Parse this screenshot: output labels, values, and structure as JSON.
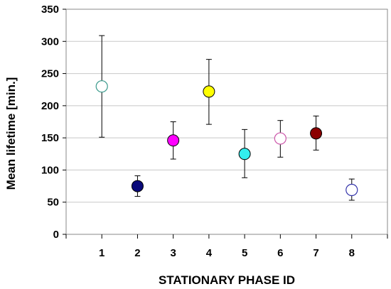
{
  "chart_data": {
    "type": "scatter",
    "xlabel": "STATIONARY PHASE ID",
    "ylabel": "Mean lifetime [min.]",
    "xlim": [
      0,
      9
    ],
    "ylim": [
      0,
      350
    ],
    "x_ticks": [
      1,
      2,
      3,
      4,
      5,
      6,
      7,
      8
    ],
    "y_ticks": [
      0,
      50,
      100,
      150,
      200,
      250,
      300,
      350
    ],
    "grid": "horizontal",
    "points": [
      {
        "x": 1,
        "y": 230,
        "err_low": 151,
        "err_high": 309,
        "color": "#3a9a8c",
        "filled": false
      },
      {
        "x": 2,
        "y": 75,
        "err_low": 59,
        "err_high": 91,
        "color": "#0a0a7a",
        "filled": true
      },
      {
        "x": 3,
        "y": 146,
        "err_low": 117,
        "err_high": 175,
        "color": "#ff00ff",
        "filled": true
      },
      {
        "x": 4,
        "y": 222,
        "err_low": 171,
        "err_high": 272,
        "color": "#ffff00",
        "filled": true
      },
      {
        "x": 5,
        "y": 125,
        "err_low": 88,
        "err_high": 163,
        "color": "#33eeee",
        "filled": true
      },
      {
        "x": 6,
        "y": 149,
        "err_low": 120,
        "err_high": 177,
        "color": "#cc55aa",
        "filled": false
      },
      {
        "x": 7,
        "y": 157,
        "err_low": 131,
        "err_high": 184,
        "color": "#8b0000",
        "filled": true
      },
      {
        "x": 8,
        "y": 69,
        "err_low": 53,
        "err_high": 86,
        "color": "#3333aa",
        "filled": false
      }
    ]
  }
}
